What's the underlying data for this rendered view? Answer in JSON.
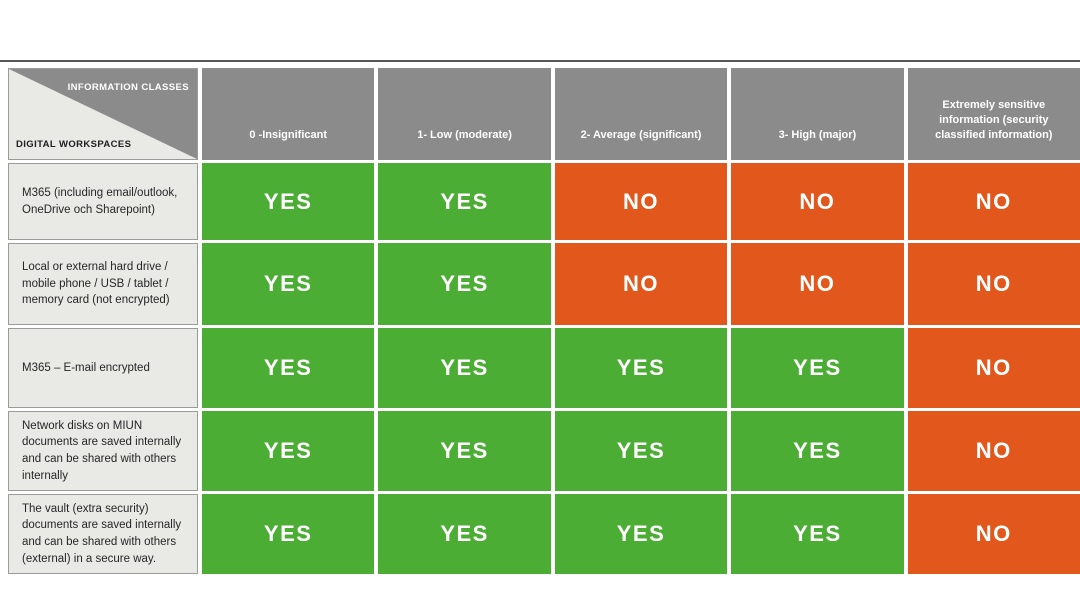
{
  "chart_data": {
    "type": "table",
    "corner": {
      "top_label": "INFORMATION CLASSES",
      "bottom_label": "DIGITAL WORKSPACES"
    },
    "columns": [
      "0 -Insignificant",
      "1- Low (moderate)",
      "2- Average (significant)",
      "3- High (major)",
      "Extremely sensitive information (security classified information)"
    ],
    "rows": [
      {
        "label": "M365 (including email/outlook, OneDrive och Sharepoint)",
        "values": [
          "YES",
          "YES",
          "NO",
          "NO",
          "NO"
        ]
      },
      {
        "label": "Local or external hard drive / mobile phone / USB / tablet / memory card (not encrypted)",
        "values": [
          "YES",
          "YES",
          "NO",
          "NO",
          "NO"
        ]
      },
      {
        "label": "M365 – E-mail encrypted",
        "values": [
          "YES",
          "YES",
          "YES",
          "YES",
          "NO"
        ]
      },
      {
        "label": "Network disks on MIUN documents are saved internally and can be shared with others internally",
        "values": [
          "YES",
          "YES",
          "YES",
          "YES",
          "NO"
        ]
      },
      {
        "label": "The vault (extra security) documents are saved internally and can be shared with others (external) in a secure way.",
        "values": [
          "YES",
          "YES",
          "YES",
          "YES",
          "NO"
        ]
      }
    ],
    "colors": {
      "yes_green": "#4BAD33",
      "no_orange": "#E2571B",
      "header_gray": "#8B8B8B",
      "label_bg": "#E9E9E6",
      "label_border": "#9B9B9B",
      "rule_line": "#565656",
      "text_light": "#FFFFFF",
      "text_dark": "#262626"
    },
    "legend_position": "none",
    "grid": "white gaps between cells"
  }
}
